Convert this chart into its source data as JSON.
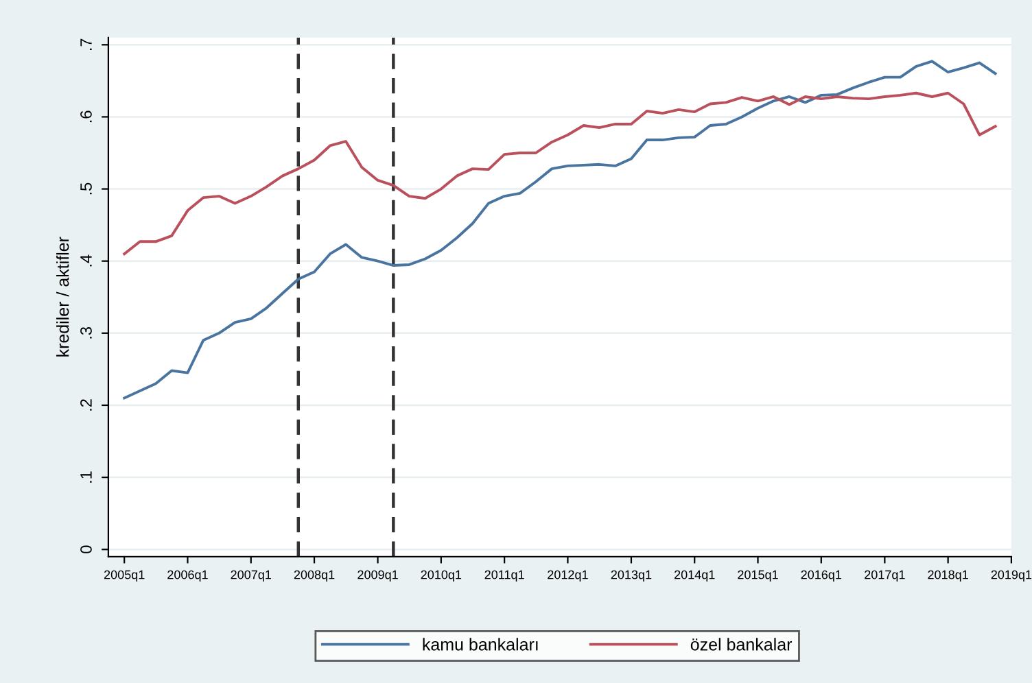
{
  "chart_data": {
    "type": "line",
    "ylabel": "krediler / aktifler",
    "x": [
      "2005-01",
      "2005-04",
      "2005-07",
      "2005-10",
      "2006-01",
      "2006-04",
      "2006-07",
      "2006-10",
      "2007-01",
      "2007-04",
      "2007-07",
      "2007-10",
      "2008-01",
      "2008-04",
      "2008-07",
      "2008-10",
      "2009-01",
      "2009-04",
      "2009-07",
      "2009-10",
      "2010-01",
      "2010-04",
      "2010-07",
      "2010-10",
      "2011-01",
      "2011-04",
      "2011-07",
      "2011-10",
      "2012-01",
      "2012-04",
      "2012-07",
      "2012-10",
      "2013-01",
      "2013-04",
      "2013-07",
      "2013-10",
      "2014-01",
      "2014-04",
      "2014-07",
      "2014-10",
      "2015-01",
      "2015-04",
      "2015-07",
      "2015-10",
      "2016-01",
      "2016-04",
      "2016-07",
      "2016-10",
      "2017-01",
      "2017-04",
      "2017-07",
      "2017-10",
      "2018-01",
      "2018-04",
      "2018-07",
      "2018-10"
    ],
    "series": [
      {
        "name": "kamu bankaları",
        "color": "#4a74a0",
        "values": [
          0.21,
          0.22,
          0.23,
          0.248,
          0.245,
          0.29,
          0.3,
          0.315,
          0.32,
          0.335,
          0.355,
          0.375,
          0.385,
          0.41,
          0.423,
          0.405,
          0.4,
          0.394,
          0.395,
          0.403,
          0.415,
          0.432,
          0.452,
          0.48,
          0.49,
          0.494,
          0.51,
          0.528,
          0.532,
          0.533,
          0.534,
          0.532,
          0.542,
          0.568,
          0.568,
          0.571,
          0.572,
          0.588,
          0.59,
          0.6,
          0.612,
          0.622,
          0.628,
          0.62,
          0.63,
          0.631,
          0.64,
          0.648,
          0.655,
          0.655,
          0.67,
          0.677,
          0.662,
          0.668,
          0.675,
          0.66
        ]
      },
      {
        "name": "özel bankalar",
        "color": "#b9505c",
        "values": [
          0.41,
          0.427,
          0.427,
          0.435,
          0.47,
          0.488,
          0.49,
          0.48,
          0.49,
          0.503,
          0.518,
          0.528,
          0.54,
          0.56,
          0.566,
          0.53,
          0.512,
          0.505,
          0.49,
          0.487,
          0.5,
          0.518,
          0.528,
          0.527,
          0.548,
          0.55,
          0.55,
          0.565,
          0.575,
          0.588,
          0.585,
          0.59,
          0.59,
          0.608,
          0.605,
          0.61,
          0.607,
          0.618,
          0.62,
          0.627,
          0.622,
          0.628,
          0.617,
          0.628,
          0.625,
          0.628,
          0.626,
          0.625,
          0.628,
          0.63,
          0.633,
          0.628,
          0.633,
          0.618,
          0.575,
          0.587
        ]
      }
    ],
    "xlim": [
      "2004-10",
      "2019-01"
    ],
    "xticks": [
      {
        "value": "2005-01",
        "label": "2005q1"
      },
      {
        "value": "2006-01",
        "label": "2006q1"
      },
      {
        "value": "2007-01",
        "label": "2007q1"
      },
      {
        "value": "2008-01",
        "label": "2008q1"
      },
      {
        "value": "2009-01",
        "label": "2009q1"
      },
      {
        "value": "2010-01",
        "label": "2010q1"
      },
      {
        "value": "2011-01",
        "label": "2011q1"
      },
      {
        "value": "2012-01",
        "label": "2012q1"
      },
      {
        "value": "2013-01",
        "label": "2013q1"
      },
      {
        "value": "2014-01",
        "label": "2014q1"
      },
      {
        "value": "2015-01",
        "label": "2015q1"
      },
      {
        "value": "2016-01",
        "label": "2016q1"
      },
      {
        "value": "2017-01",
        "label": "2017q1"
      },
      {
        "value": "2018-01",
        "label": "2018q1"
      },
      {
        "value": "2019-01",
        "label": "2019q1"
      }
    ],
    "ylim": [
      -0.01,
      0.71
    ],
    "yticks": [
      0,
      {
        "value": 0.1,
        "label": ".1"
      },
      {
        "value": 0.2,
        "label": ".2"
      },
      {
        "value": 0.3,
        "label": ".3"
      },
      {
        "value": 0.4,
        "label": ".4"
      },
      {
        "value": 0.5,
        "label": ".5"
      },
      {
        "value": 0.6,
        "label": ".6"
      },
      {
        "value": 0.7,
        "label": ".7"
      }
    ],
    "ref_lines": [
      {
        "axis": "x",
        "value": "2007-10",
        "color": "#333333",
        "line_style": "dashed"
      },
      {
        "axis": "x",
        "value": "2009-04",
        "color": "#333333",
        "line_style": "dashed"
      }
    ],
    "grid": "y",
    "legend": "bottom",
    "line_style": "solid",
    "marker": "none"
  }
}
